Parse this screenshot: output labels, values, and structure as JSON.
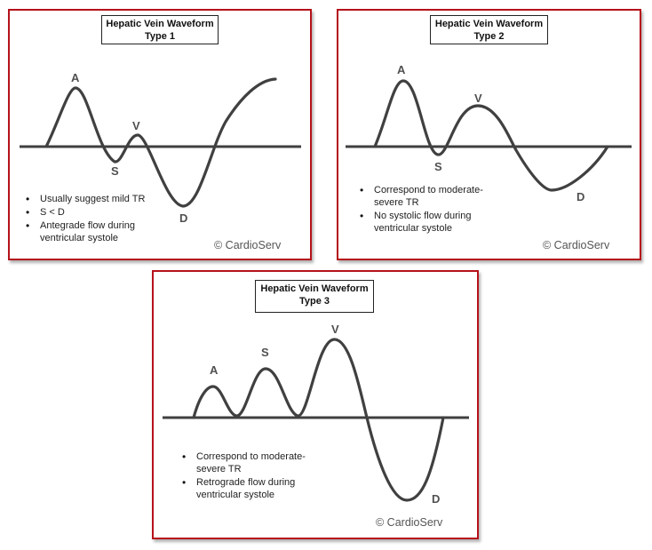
{
  "panels": [
    {
      "title_line1": "Hepatic Vein Waveform",
      "title_line2": "Type 1",
      "labels": {
        "a": "A",
        "s": "S",
        "v": "V",
        "d": "D"
      },
      "bullets": [
        "Usually suggest mild TR",
        "S < D",
        "Antegrade flow during ventricular systole"
      ],
      "copyright": "© CardioServ"
    },
    {
      "title_line1": "Hepatic Vein Waveform",
      "title_line2": "Type 2",
      "labels": {
        "a": "A",
        "s": "S",
        "v": "V",
        "d": "D"
      },
      "bullets": [
        "Correspond to moderate-severe TR",
        "No systolic flow during ventricular systole"
      ],
      "copyright": "© CardioServ"
    },
    {
      "title_line1": "Hepatic Vein Waveform",
      "title_line2": "Type 3",
      "labels": {
        "a": "A",
        "s": "S",
        "v": "V",
        "d": "D"
      },
      "bullets": [
        "Correspond to moderate-severe TR",
        "Retrograde flow during ventricular systole"
      ],
      "copyright": "© CardioServ"
    }
  ],
  "colors": {
    "panel_border": "#b5121b",
    "waveform": "#404040"
  }
}
